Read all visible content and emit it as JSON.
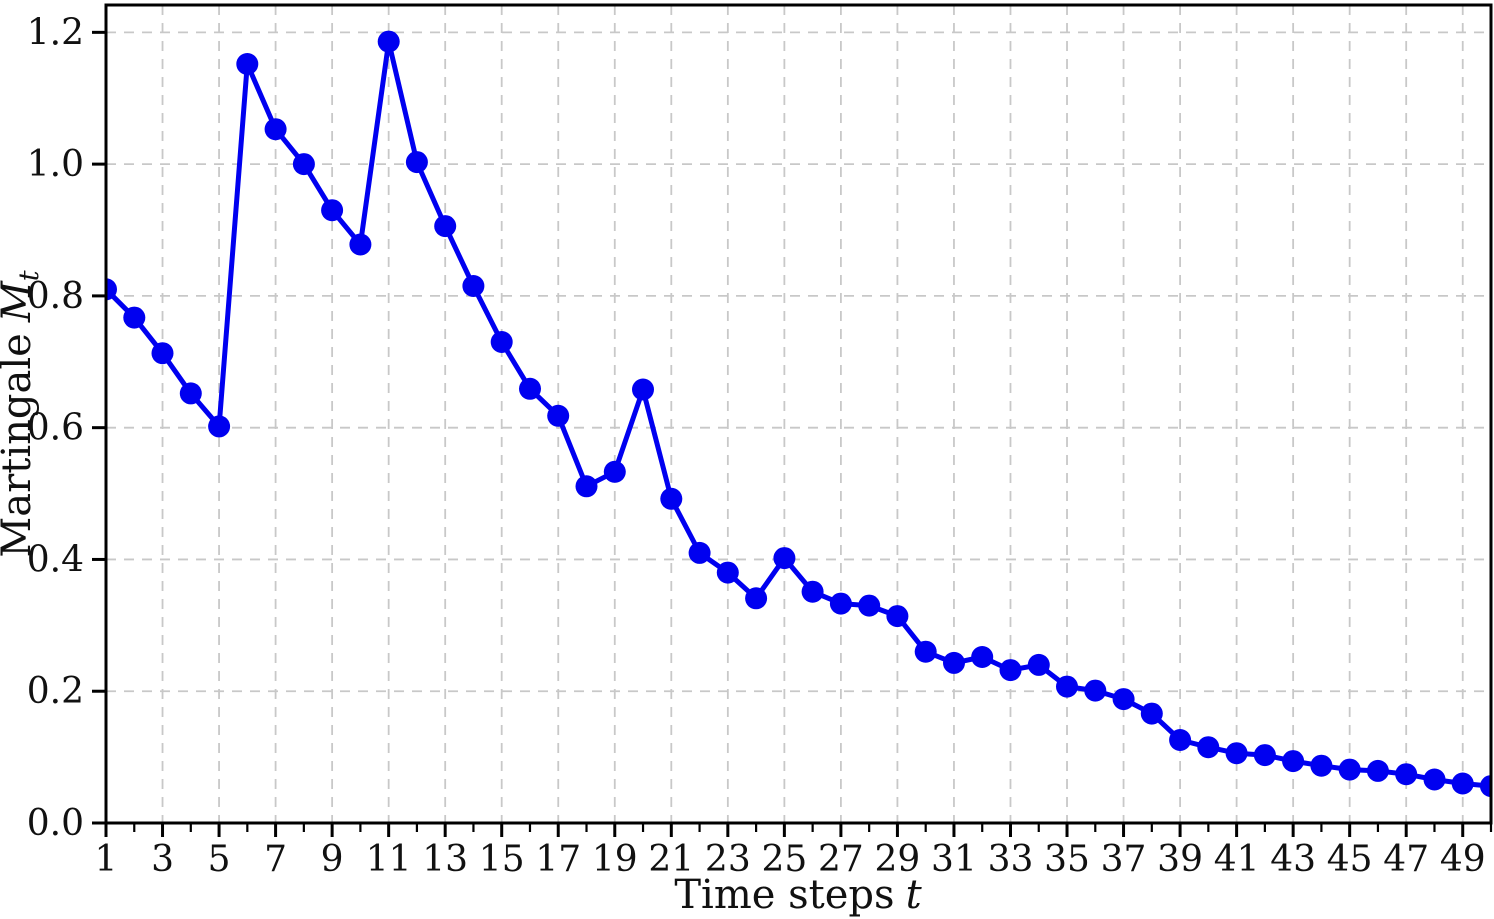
{
  "chart_data": {
    "type": "line",
    "title": "",
    "xlabel_text": "Time steps",
    "xlabel_var": "t",
    "ylabel_text": "Martingale",
    "ylabel_var": "M",
    "ylabel_var_sub": "t",
    "legend_position": "none",
    "grid": true,
    "grid_style": "dashed",
    "line_color": "#0000f0",
    "marker": "circle",
    "marker_size_px": 11,
    "grid_color": "#c8c8c8",
    "axis_color": "#000000",
    "background_color": "#ffffff",
    "xlim": [
      1,
      50
    ],
    "ylim": [
      0,
      1.2415
    ],
    "xticks": [
      1,
      3,
      5,
      7,
      9,
      11,
      13,
      15,
      17,
      19,
      21,
      23,
      25,
      27,
      29,
      31,
      33,
      35,
      37,
      39,
      41,
      43,
      45,
      47,
      49
    ],
    "xtick_labels": [
      "1",
      "3",
      "5",
      "7",
      "9",
      "11",
      "13",
      "15",
      "17",
      "19",
      "21",
      "23",
      "25",
      "27",
      "29",
      "31",
      "33",
      "35",
      "37",
      "39",
      "41",
      "43",
      "45",
      "47",
      "49"
    ],
    "xticks_minor": [
      2,
      4,
      6,
      8,
      10,
      12,
      14,
      16,
      18,
      20,
      22,
      24,
      26,
      28,
      30,
      32,
      34,
      36,
      38,
      40,
      42,
      44,
      46,
      48,
      50
    ],
    "yticks": [
      0.0,
      0.2,
      0.4,
      0.6,
      0.8,
      1.0,
      1.2
    ],
    "ytick_labels": [
      "0.0",
      "0.2",
      "0.4",
      "0.6",
      "0.8",
      "1.0",
      "1.2"
    ],
    "x": [
      1,
      2,
      3,
      4,
      5,
      6,
      7,
      8,
      9,
      10,
      11,
      12,
      13,
      14,
      15,
      16,
      17,
      18,
      19,
      20,
      21,
      22,
      23,
      24,
      25,
      26,
      27,
      28,
      29,
      30,
      31,
      32,
      33,
      34,
      35,
      36,
      37,
      38,
      39,
      40,
      41,
      42,
      43,
      44,
      45,
      46,
      47,
      48,
      49,
      50
    ],
    "series": [
      {
        "name": "Martingale M_t",
        "values": [
          0.81,
          0.767,
          0.713,
          0.652,
          0.602,
          1.152,
          1.053,
          1.0,
          0.93,
          0.878,
          1.186,
          1.003,
          0.906,
          0.815,
          0.73,
          0.659,
          0.618,
          0.511,
          0.533,
          0.658,
          0.492,
          0.41,
          0.38,
          0.341,
          0.402,
          0.351,
          0.333,
          0.33,
          0.314,
          0.26,
          0.243,
          0.252,
          0.232,
          0.24,
          0.207,
          0.201,
          0.188,
          0.166,
          0.126,
          0.115,
          0.106,
          0.103,
          0.094,
          0.087,
          0.081,
          0.079,
          0.074,
          0.066,
          0.06,
          0.056
        ]
      }
    ]
  }
}
